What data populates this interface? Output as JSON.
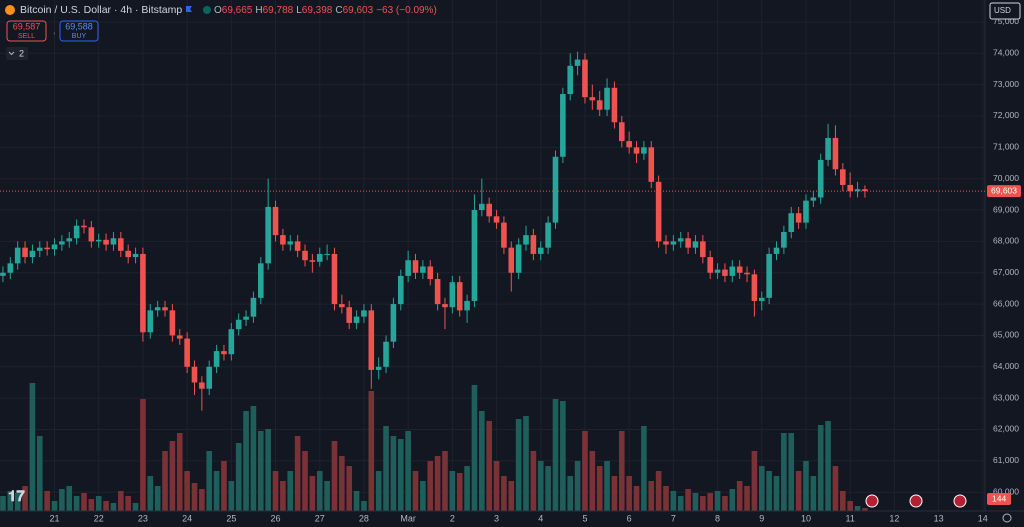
{
  "header": {
    "legend": [
      "O",
      "69,665",
      "H",
      "69,788",
      "L",
      "69,398",
      "C",
      "69,603",
      "−63 (−0.09%)"
    ],
    "sell_price": "69,587",
    "sell": "SELL",
    "buy_price": "69,588",
    "buy": "BUY",
    "indicators": "2",
    "currency": "USD"
  },
  "chart_data": {
    "type": "candlestick",
    "title": "Bitcoin / U.S. Dollar · 4h · Bitstamp",
    "up_color": "#26a69a",
    "down_color": "#ef5350",
    "volume_up_color": "#1f5f5b",
    "volume_down_color": "#7a3236",
    "grid": true,
    "open": [
      66900,
      67000,
      67300,
      67800,
      67500,
      67700,
      67800,
      67750,
      67900,
      68000,
      68100,
      68500,
      68450,
      68000,
      68050,
      67900,
      68100,
      67700,
      67500,
      67600,
      65100,
      65800,
      65900,
      65800,
      65000,
      64900,
      64000,
      63500,
      63300,
      64000,
      64500,
      64400,
      65200,
      65500,
      65600,
      66200,
      67300,
      69100,
      68200,
      67900,
      68000,
      67700,
      67400,
      67350,
      67600,
      67600,
      66000,
      65900,
      65400,
      65600,
      65800,
      63900,
      64000,
      64800,
      66000,
      66900,
      67400,
      67000,
      67200,
      66800,
      66000,
      65900,
      66700,
      65800,
      66100,
      69000,
      69200,
      68800,
      68600,
      67800,
      67000,
      67900,
      68200,
      67600,
      67800,
      68600,
      70700,
      72700,
      73600,
      73800,
      72600,
      72500,
      72200,
      72900,
      71800,
      71200,
      71000,
      70800,
      71000,
      69900,
      68000,
      67900,
      68000,
      68100,
      67800,
      68000,
      67500,
      67000,
      67100,
      66900,
      67200,
      67000,
      66950,
      66100,
      66200,
      67600,
      67800,
      68300,
      68900,
      68600,
      69300,
      69400,
      70600,
      71300,
      70300,
      69800,
      69600,
      69665
    ],
    "high": [
      67200,
      67500,
      68000,
      68000,
      67900,
      68000,
      68000,
      68100,
      68200,
      68300,
      68700,
      68700,
      68650,
      68250,
      68250,
      68300,
      68300,
      67900,
      67800,
      67800,
      66000,
      66100,
      66100,
      66000,
      65200,
      65100,
      64200,
      63700,
      64200,
      64700,
      64700,
      65400,
      65700,
      65800,
      66400,
      67500,
      70000,
      69300,
      68400,
      68200,
      68200,
      67900,
      67600,
      67800,
      67900,
      67800,
      66300,
      66100,
      65800,
      66000,
      66000,
      64300,
      65000,
      66200,
      67100,
      67700,
      67600,
      67400,
      67400,
      67000,
      66200,
      66900,
      66900,
      66300,
      69500,
      70000,
      69400,
      69000,
      68800,
      68000,
      68100,
      68500,
      68400,
      68000,
      68800,
      70900,
      72900,
      74000,
      74050,
      74000,
      73000,
      72800,
      73200,
      73100,
      72000,
      71500,
      71200,
      71200,
      71200,
      70100,
      68200,
      68200,
      68300,
      68300,
      68200,
      68200,
      67700,
      67300,
      67300,
      67400,
      67400,
      67200,
      67100,
      66400,
      67800,
      68000,
      68500,
      69100,
      69100,
      69500,
      69600,
      70800,
      71750,
      71700,
      70500,
      70200,
      69900,
      69788
    ],
    "low": [
      66700,
      66800,
      67100,
      67300,
      67300,
      67500,
      67550,
      67550,
      67700,
      67800,
      67900,
      68250,
      67800,
      67800,
      67700,
      67700,
      67500,
      67300,
      67300,
      64800,
      64900,
      65600,
      65600,
      64800,
      64700,
      63800,
      63100,
      62600,
      63100,
      63800,
      64200,
      64200,
      65000,
      65300,
      65400,
      66000,
      67100,
      68000,
      67700,
      67700,
      67500,
      67200,
      67000,
      67200,
      67400,
      65800,
      65700,
      65200,
      65200,
      65400,
      63300,
      63600,
      63800,
      64600,
      65800,
      66700,
      66800,
      66800,
      66600,
      65800,
      65200,
      65700,
      65600,
      65400,
      65900,
      68800,
      68600,
      68400,
      67600,
      66400,
      66800,
      67700,
      67400,
      67400,
      67600,
      68400,
      70500,
      72500,
      73300,
      72400,
      72200,
      72000,
      72000,
      71600,
      71000,
      70800,
      70500,
      70600,
      69700,
      67800,
      67600,
      67700,
      67800,
      67600,
      67600,
      67300,
      66800,
      66800,
      66700,
      66700,
      66800,
      66700,
      65600,
      65800,
      66000,
      67400,
      67600,
      68100,
      68400,
      68400,
      69100,
      69200,
      70400,
      70100,
      69600,
      69400,
      69400,
      69398
    ],
    "close": [
      67000,
      67300,
      67800,
      67500,
      67700,
      67800,
      67750,
      67900,
      68000,
      68100,
      68500,
      68450,
      68000,
      68050,
      67900,
      68100,
      67700,
      67500,
      67600,
      65100,
      65800,
      65900,
      65800,
      65000,
      64900,
      64000,
      63500,
      63300,
      64000,
      64500,
      64400,
      65200,
      65500,
      65600,
      66200,
      67300,
      69100,
      68200,
      67900,
      68000,
      67700,
      67400,
      67350,
      67600,
      67600,
      66000,
      65900,
      65400,
      65600,
      65800,
      63900,
      64000,
      64800,
      66000,
      66900,
      67400,
      67000,
      67200,
      66800,
      66000,
      65900,
      66700,
      65800,
      66100,
      69000,
      69200,
      68800,
      68600,
      67800,
      67000,
      67900,
      68200,
      67600,
      67800,
      68600,
      70700,
      72700,
      73600,
      73800,
      72600,
      72500,
      72200,
      72900,
      71800,
      71200,
      71000,
      70800,
      71000,
      69900,
      68000,
      67900,
      68000,
      68100,
      67800,
      68000,
      67500,
      67000,
      67100,
      66900,
      67200,
      67000,
      66950,
      66100,
      66200,
      67600,
      67800,
      68300,
      68900,
      68600,
      69300,
      69400,
      70600,
      71300,
      70300,
      69800,
      69600,
      69665,
      69603
    ],
    "volume": [
      750,
      1000,
      900,
      1250,
      6400,
      3750,
      1000,
      500,
      1100,
      1250,
      750,
      900,
      600,
      750,
      500,
      400,
      1000,
      750,
      400,
      5600,
      1750,
      1250,
      3000,
      3500,
      3900,
      2000,
      1400,
      1100,
      3000,
      2000,
      2500,
      1500,
      3400,
      5000,
      5250,
      4000,
      4100,
      2000,
      1500,
      2000,
      3750,
      3000,
      1750,
      2000,
      1500,
      3500,
      2750,
      2250,
      1000,
      500,
      6000,
      2000,
      4250,
      3750,
      3600,
      4000,
      2000,
      1500,
      2500,
      2750,
      3000,
      2000,
      1900,
      2250,
      6300,
      5000,
      4500,
      2500,
      1750,
      1500,
      4600,
      4750,
      3000,
      2500,
      2250,
      5600,
      5500,
      1750,
      2500,
      4000,
      3000,
      2250,
      2500,
      1750,
      4000,
      1750,
      1250,
      4250,
      1500,
      2000,
      1250,
      1000,
      750,
      1100,
      900,
      750,
      900,
      1000,
      750,
      1100,
      1500,
      1250,
      3000,
      2250,
      2000,
      1750,
      3900,
      3900,
      2000,
      2500,
      1750,
      4300,
      4500,
      2250,
      1000,
      500,
      250,
      144
    ],
    "last_price_label": "69,603",
    "last_volume_label": "144",
    "ylim": [
      59400,
      75700
    ],
    "yticks": [
      {
        "value": 60000,
        "label": "60,000"
      },
      {
        "value": 61000,
        "label": "61,000"
      },
      {
        "value": 62000,
        "label": "62,000"
      },
      {
        "value": 63000,
        "label": "63,000"
      },
      {
        "value": 64000,
        "label": "64,000"
      },
      {
        "value": 65000,
        "label": "65,000"
      },
      {
        "value": 66000,
        "label": "66,000"
      },
      {
        "value": 67000,
        "label": "67,000"
      },
      {
        "value": 68000,
        "label": "68,000"
      },
      {
        "value": 69000,
        "label": "69,000"
      },
      {
        "value": 70000,
        "label": "70,000"
      },
      {
        "value": 71000,
        "label": "71,000"
      },
      {
        "value": 72000,
        "label": "72,000"
      },
      {
        "value": 73000,
        "label": "73,000"
      },
      {
        "value": 74000,
        "label": "74,000"
      },
      {
        "value": 75000,
        "label": "75,000"
      }
    ],
    "xlim": [
      -0.4,
      133.3
    ],
    "xticks": [
      {
        "value": 7,
        "label": "21"
      },
      {
        "value": 13,
        "label": "22"
      },
      {
        "value": 19,
        "label": "23"
      },
      {
        "value": 25,
        "label": "24"
      },
      {
        "value": 31,
        "label": "25"
      },
      {
        "value": 37,
        "label": "26"
      },
      {
        "value": 43,
        "label": "27"
      },
      {
        "value": 49,
        "label": "28"
      },
      {
        "value": 55,
        "label": "Mar"
      },
      {
        "value": 61,
        "label": "2"
      },
      {
        "value": 67,
        "label": "3"
      },
      {
        "value": 73,
        "label": "4"
      },
      {
        "value": 79,
        "label": "5"
      },
      {
        "value": 85,
        "label": "6"
      },
      {
        "value": 91,
        "label": "7"
      },
      {
        "value": 97,
        "label": "8"
      },
      {
        "value": 103,
        "label": "9"
      },
      {
        "value": 109,
        "label": "10"
      },
      {
        "value": 115,
        "label": "11"
      },
      {
        "value": 121,
        "label": "12"
      },
      {
        "value": 127,
        "label": "13"
      },
      {
        "value": 133,
        "label": "14"
      }
    ]
  }
}
